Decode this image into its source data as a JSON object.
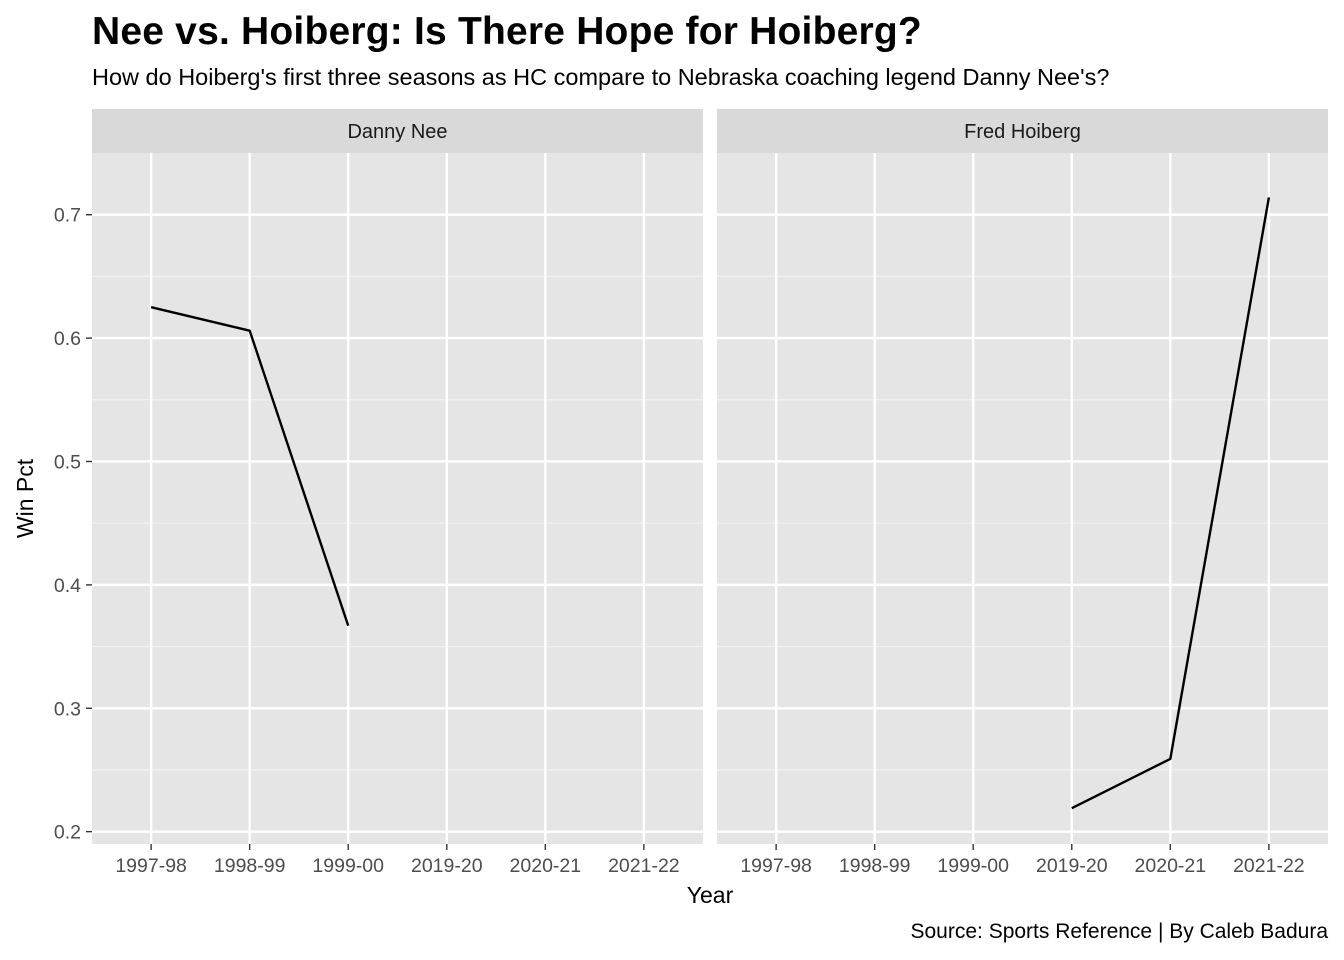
{
  "title": "Nee vs. Hoiberg: Is There Hope for Hoiberg?",
  "subtitle": "How do Hoiberg's first three seasons as HC compare to Nebraska coaching legend Danny Nee's?",
  "caption": "Source: Sports Reference | By Caleb Badura",
  "chart_data": {
    "type": "line",
    "faceted": true,
    "xlabel": "Year",
    "ylabel": "Win Pct",
    "categories": [
      "1997-98",
      "1998-99",
      "1999-00",
      "2019-20",
      "2020-21",
      "2021-22"
    ],
    "ylim": [
      0.19,
      0.75
    ],
    "yticks": [
      0.2,
      0.3,
      0.4,
      0.5,
      0.6,
      0.7
    ],
    "ytick_labels": [
      "0.2",
      "0.3",
      "0.4",
      "0.5",
      "0.6",
      "0.7"
    ],
    "grid": true,
    "line_color": "#000000",
    "panel_background": "#e5e5e5",
    "strip_background": "#d9d9d9",
    "facets": [
      {
        "name": "Danny Nee",
        "x": [
          "1997-98",
          "1998-99",
          "1999-00"
        ],
        "values": [
          0.625,
          0.606,
          0.367
        ]
      },
      {
        "name": "Fred Hoiberg",
        "x": [
          "2019-20",
          "2020-21",
          "2021-22"
        ],
        "values": [
          0.219,
          0.259,
          0.714
        ]
      }
    ]
  }
}
